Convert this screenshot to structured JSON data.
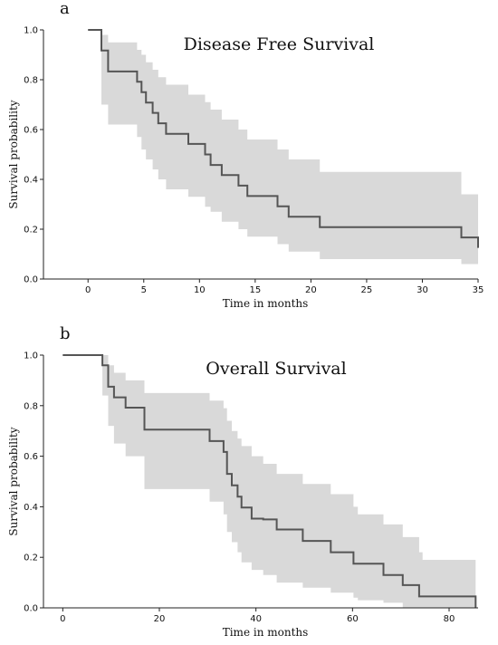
{
  "chart_data": [
    {
      "panel": "a",
      "type": "line",
      "step": true,
      "title": "Disease Free Survival",
      "xlabel": "Time in months",
      "ylabel": "Survival probability",
      "xlim": [
        -4,
        35
      ],
      "ylim": [
        0,
        1
      ],
      "xticks": [
        0,
        5,
        10,
        15,
        20,
        25,
        30,
        35
      ],
      "yticks": [
        0.0,
        0.2,
        0.4,
        0.6,
        0.8,
        1.0
      ],
      "grid": false,
      "band_color": "#d9d9d9",
      "line_color": "#555555",
      "series": [
        {
          "kind": "estimate",
          "x": [
            0,
            1.2,
            1.8,
            4.4,
            4.8,
            5.2,
            5.8,
            6.3,
            7.0,
            9.0,
            10.5,
            11.0,
            12.0,
            13.5,
            14.3,
            17.0,
            18.0,
            20.8,
            33.5,
            35.0
          ],
          "y": [
            1.0,
            0.917,
            0.833,
            0.792,
            0.75,
            0.708,
            0.667,
            0.625,
            0.583,
            0.542,
            0.5,
            0.458,
            0.417,
            0.375,
            0.333,
            0.292,
            0.25,
            0.208,
            0.167,
            0.125
          ]
        },
        {
          "kind": "ci_upper",
          "x": [
            0,
            1.2,
            1.8,
            4.4,
            4.8,
            5.2,
            5.8,
            6.3,
            7.0,
            9.0,
            10.5,
            11.0,
            12.0,
            13.5,
            14.3,
            17.0,
            18.0,
            20.8,
            33.5,
            35.0
          ],
          "y": [
            1.0,
            0.98,
            0.95,
            0.92,
            0.9,
            0.87,
            0.84,
            0.81,
            0.78,
            0.74,
            0.71,
            0.68,
            0.64,
            0.6,
            0.56,
            0.52,
            0.48,
            0.43,
            0.34,
            0.29
          ]
        },
        {
          "kind": "ci_lower",
          "x": [
            0,
            1.2,
            1.8,
            4.4,
            4.8,
            5.2,
            5.8,
            6.3,
            7.0,
            9.0,
            10.5,
            11.0,
            12.0,
            13.5,
            14.3,
            17.0,
            18.0,
            20.8,
            33.5,
            35.0
          ],
          "y": [
            1.0,
            0.7,
            0.62,
            0.57,
            0.52,
            0.48,
            0.44,
            0.4,
            0.36,
            0.33,
            0.29,
            0.27,
            0.23,
            0.2,
            0.17,
            0.14,
            0.11,
            0.08,
            0.06,
            0.03
          ]
        }
      ]
    },
    {
      "panel": "b",
      "type": "line",
      "step": true,
      "title": "Overall Survival",
      "xlabel": "Time in months",
      "ylabel": "Survival probability",
      "xlim": [
        -4,
        86
      ],
      "ylim": [
        0,
        1
      ],
      "xticks": [
        0,
        20,
        40,
        60,
        80
      ],
      "yticks": [
        0.0,
        0.2,
        0.4,
        0.6,
        0.8,
        1.0
      ],
      "grid": false,
      "band_color": "#d9d9d9",
      "line_color": "#555555",
      "series": [
        {
          "kind": "estimate",
          "x": [
            0,
            8.2,
            9.4,
            10.6,
            13.0,
            16.9,
            30.4,
            33.3,
            34.0,
            35.0,
            36.2,
            37.0,
            39.1,
            41.5,
            44.3,
            49.7,
            55.5,
            60.2,
            61.1,
            66.4,
            70.4,
            73.8,
            74.5,
            85.5
          ],
          "y": [
            1.0,
            0.96,
            0.875,
            0.833,
            0.792,
            0.705,
            0.66,
            0.617,
            0.53,
            0.485,
            0.44,
            0.397,
            0.353,
            0.35,
            0.31,
            0.265,
            0.22,
            0.175,
            0.175,
            0.13,
            0.09,
            0.045,
            0.045,
            0.0
          ]
        },
        {
          "kind": "ci_upper",
          "x": [
            0,
            8.2,
            9.4,
            10.6,
            13.0,
            16.9,
            30.4,
            33.3,
            34.0,
            35.0,
            36.2,
            37.0,
            39.1,
            41.5,
            44.3,
            49.7,
            55.5,
            60.2,
            61.1,
            66.4,
            70.4,
            73.8,
            74.5,
            85.5
          ],
          "y": [
            1.0,
            1.0,
            0.96,
            0.93,
            0.9,
            0.85,
            0.82,
            0.79,
            0.74,
            0.7,
            0.67,
            0.64,
            0.6,
            0.57,
            0.53,
            0.49,
            0.45,
            0.4,
            0.37,
            0.33,
            0.28,
            0.22,
            0.19,
            0.19
          ]
        },
        {
          "kind": "ci_lower",
          "x": [
            0,
            8.2,
            9.4,
            10.6,
            13.0,
            16.9,
            30.4,
            33.3,
            34.0,
            35.0,
            36.2,
            37.0,
            39.1,
            41.5,
            44.3,
            49.7,
            55.5,
            60.2,
            61.1,
            66.4,
            70.4,
            73.8,
            74.5,
            85.5
          ],
          "y": [
            1.0,
            0.84,
            0.72,
            0.65,
            0.6,
            0.47,
            0.42,
            0.37,
            0.3,
            0.26,
            0.22,
            0.18,
            0.15,
            0.13,
            0.1,
            0.08,
            0.06,
            0.04,
            0.03,
            0.02,
            0.0,
            0.0,
            0.0,
            0.0
          ]
        }
      ]
    }
  ]
}
